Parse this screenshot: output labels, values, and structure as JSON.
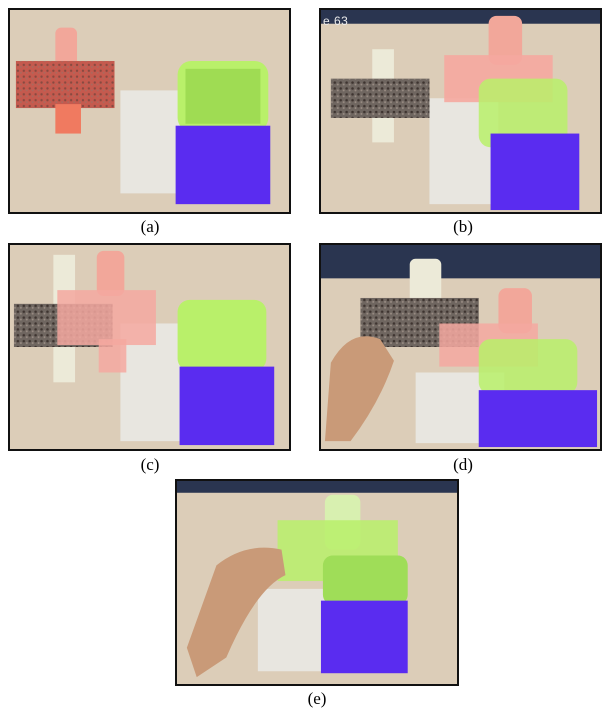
{
  "panels": [
    {
      "id": "a",
      "caption": "(a)"
    },
    {
      "id": "b",
      "caption": "(b)",
      "overlay_text": "e 63"
    },
    {
      "id": "c",
      "caption": "(c)"
    },
    {
      "id": "d",
      "caption": "(d)"
    },
    {
      "id": "e",
      "caption": "(e)"
    }
  ],
  "colors": {
    "table": "#d9c9b4",
    "paper": "#e8e6e0",
    "blue_pad": "#5a2cf0",
    "green_part": "#b9f06a",
    "red_part": "#f08a80",
    "gravel": "#6f6660",
    "dark_top": "#2a3550"
  }
}
